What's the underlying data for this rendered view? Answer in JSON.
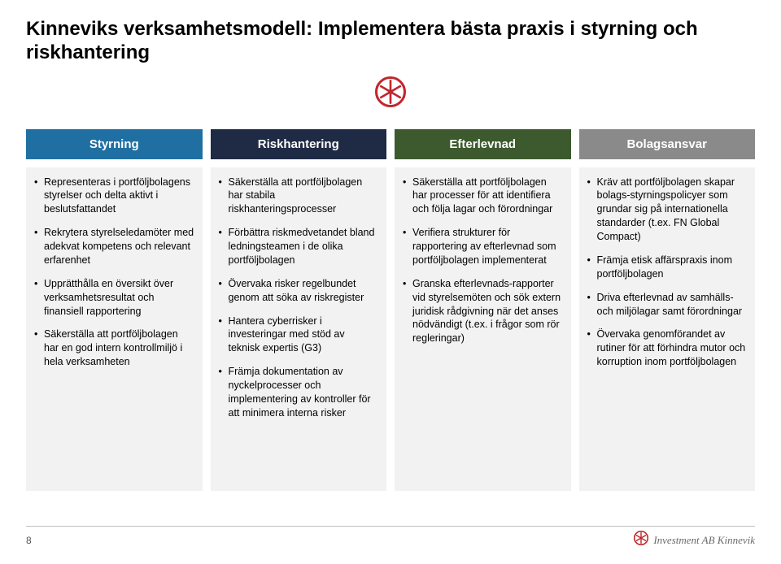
{
  "title": "Kinneviks verksamhetsmodell: Implementera bästa praxis i styrning och riskhantering",
  "logo": {
    "size": 38,
    "ring_color": "#c1272d",
    "spoke_color": "#c1272d",
    "bg": "#ffffff"
  },
  "columns": [
    {
      "header": "Styrning",
      "header_bg": "#1f6fa3",
      "body_bg": "#f2f2f2",
      "items": [
        "Representeras i portföljbolagens styrelser och delta aktivt i beslutsfattandet",
        "Rekrytera styrelseledamöter med adekvat kompetens och relevant erfarenhet",
        "Upprätthålla en översikt över verksamhetsresultat och finansiell rapportering",
        "Säkerställa att portföljbolagen har en god intern kontrollmiljö i hela verksamheten"
      ]
    },
    {
      "header": "Riskhantering",
      "header_bg": "#1f2a44",
      "body_bg": "#f2f2f2",
      "items": [
        "Säkerställa att portföljbolagen har stabila riskhanteringsprocesser",
        "Förbättra riskmedvetandet bland ledningsteamen i de olika portföljbolagen",
        "Övervaka risker regelbundet genom att söka av riskregister",
        "Hantera cyberrisker i investeringar med stöd av teknisk expertis (G3)",
        "Främja dokumentation av nyckelprocesser och implementering av kontroller för att minimera interna risker"
      ]
    },
    {
      "header": "Efterlevnad",
      "header_bg": "#3d5a2f",
      "body_bg": "#f2f2f2",
      "items": [
        "Säkerställa att portföljbolagen har processer för att identifiera och följa lagar och förordningar",
        "Verifiera strukturer för rapportering av efterlevnad som portföljbolagen implementerat",
        "Granska efterlevnads-rapporter vid styrelsemöten och sök extern juridisk rådgivning när det anses nödvändigt (t.ex. i frågor som rör regleringar)"
      ]
    },
    {
      "header": "Bolagsansvar",
      "header_bg": "#8a8a8a",
      "body_bg": "#f2f2f2",
      "items": [
        "Kräv att portföljbolagen skapar bolags-styrningspolicyer som grundar sig på internationella standarder (t.ex. FN Global Compact)",
        "Främja etisk affärspraxis inom portföljbolagen",
        "Driva efterlevnad av samhälls- och miljölagar samt förordningar",
        "Övervaka genomförandet av rutiner för att förhindra mutor och korruption inom portföljbolagen"
      ]
    }
  ],
  "footer": {
    "page_number": "8",
    "brand_text": "Investment AB Kinnevik",
    "brand_logo_size": 18,
    "brand_logo_color": "#c1272d"
  }
}
